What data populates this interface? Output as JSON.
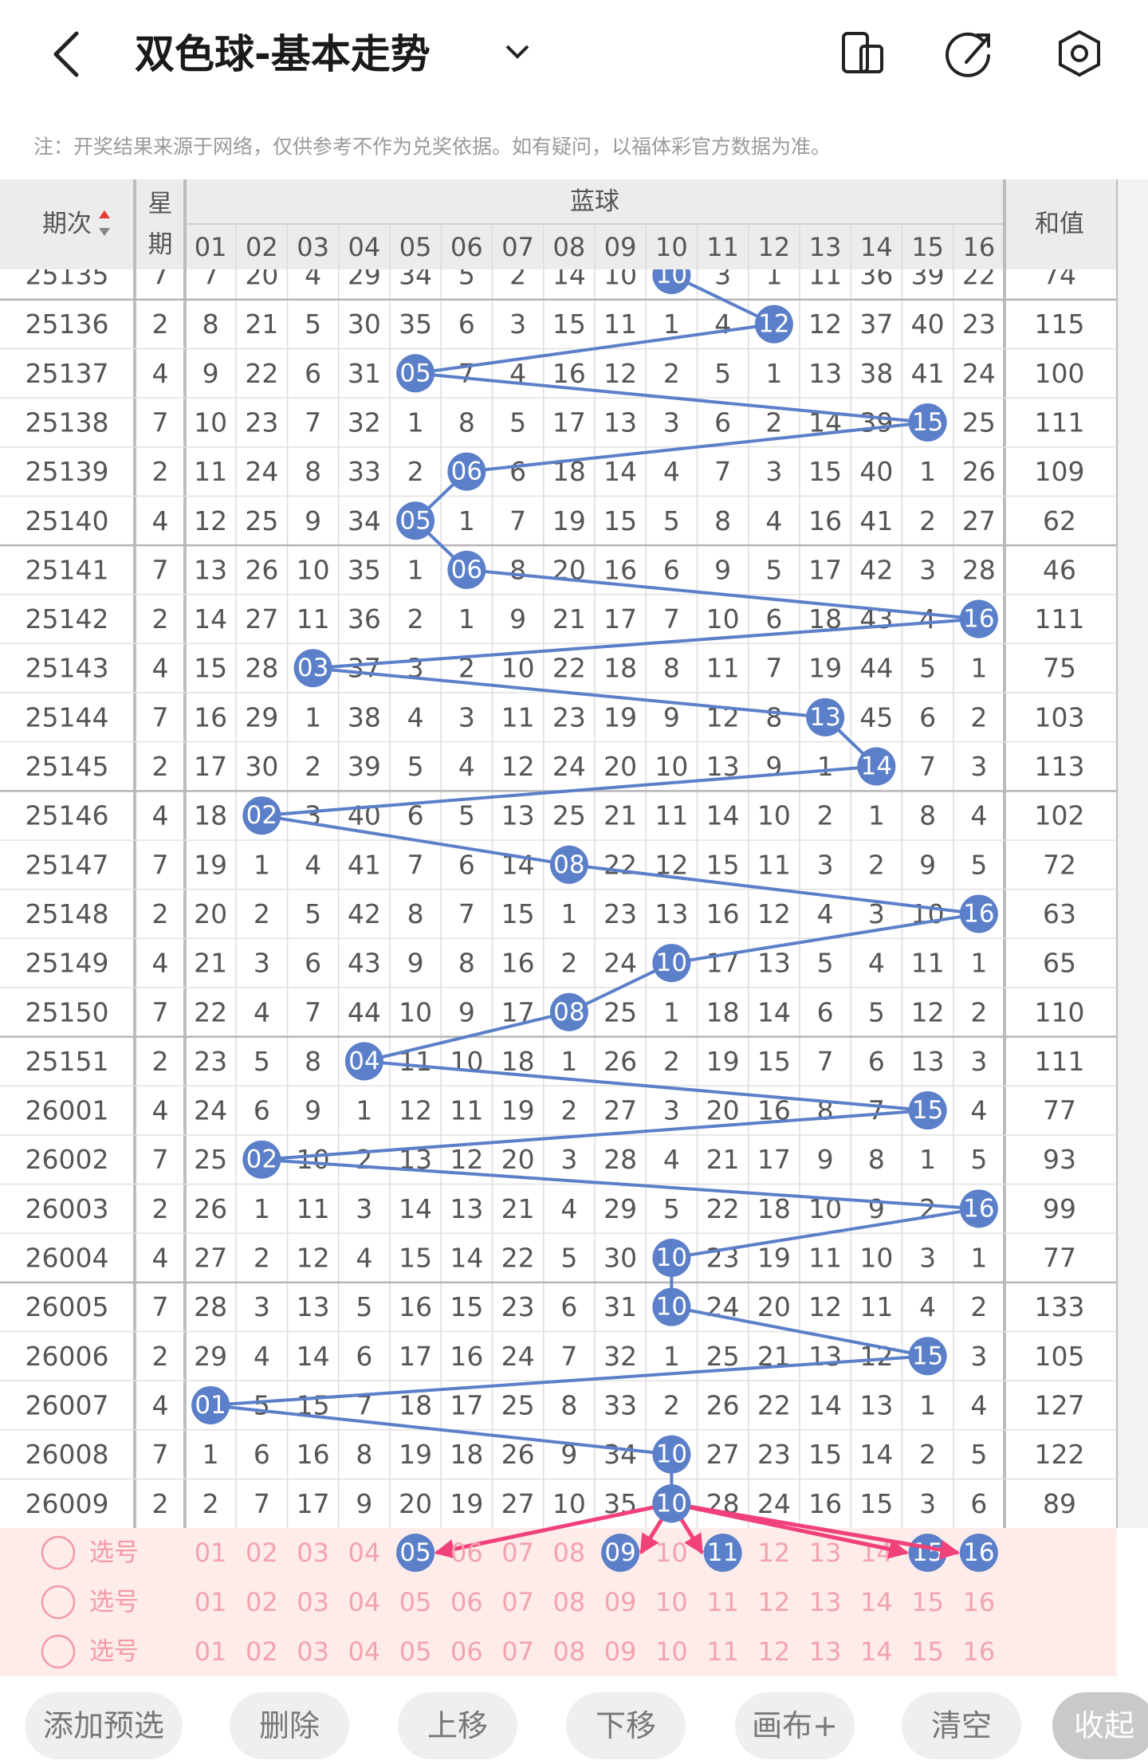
{
  "header": {
    "title": "双色球-基本走势"
  },
  "notice": "注：开奖结果来源于网络，仅供参考不作为兑奖依据。如有疑问，以福体彩官方数据为准。",
  "table": {
    "col_issue": "期次",
    "col_week": [
      "星",
      "期"
    ],
    "group": "蓝球",
    "blue_cols": [
      "01",
      "02",
      "03",
      "04",
      "05",
      "06",
      "07",
      "08",
      "09",
      "10",
      "11",
      "12",
      "13",
      "14",
      "15",
      "16"
    ],
    "col_sum": "和值",
    "rows": [
      {
        "issue": "25135",
        "week": 7,
        "cells": [
          7,
          20,
          4,
          29,
          34,
          5,
          2,
          14,
          10,
          {
            "ball": "10"
          },
          3,
          1,
          11,
          36,
          39,
          22
        ],
        "sum": 74
      },
      {
        "issue": "25136",
        "week": 2,
        "cells": [
          8,
          21,
          5,
          30,
          35,
          6,
          3,
          15,
          11,
          1,
          4,
          {
            "ball": "12"
          },
          12,
          37,
          40,
          23
        ],
        "sum": 115
      },
      {
        "issue": "25137",
        "week": 4,
        "cells": [
          9,
          22,
          6,
          31,
          {
            "ball": "05"
          },
          7,
          4,
          16,
          12,
          2,
          5,
          1,
          13,
          38,
          41,
          24
        ],
        "sum": 100
      },
      {
        "issue": "25138",
        "week": 7,
        "cells": [
          10,
          23,
          7,
          32,
          1,
          8,
          5,
          17,
          13,
          3,
          6,
          2,
          14,
          39,
          {
            "ball": "15"
          },
          25
        ],
        "sum": 111
      },
      {
        "issue": "25139",
        "week": 2,
        "cells": [
          11,
          24,
          8,
          33,
          2,
          {
            "ball": "06"
          },
          6,
          18,
          14,
          4,
          7,
          3,
          15,
          40,
          1,
          26
        ],
        "sum": 109
      },
      {
        "issue": "25140",
        "week": 4,
        "cells": [
          12,
          25,
          9,
          34,
          {
            "ball": "05"
          },
          1,
          7,
          19,
          15,
          5,
          8,
          4,
          16,
          41,
          2,
          27
        ],
        "sum": 62
      },
      {
        "issue": "25141",
        "week": 7,
        "cells": [
          13,
          26,
          10,
          35,
          1,
          {
            "ball": "06"
          },
          8,
          20,
          16,
          6,
          9,
          5,
          17,
          42,
          3,
          28
        ],
        "sum": 46
      },
      {
        "issue": "25142",
        "week": 2,
        "cells": [
          14,
          27,
          11,
          36,
          2,
          1,
          9,
          21,
          17,
          7,
          10,
          6,
          18,
          43,
          4,
          {
            "ball": "16"
          }
        ],
        "sum": 111
      },
      {
        "issue": "25143",
        "week": 4,
        "cells": [
          15,
          28,
          {
            "ball": "03"
          },
          37,
          3,
          2,
          10,
          22,
          18,
          8,
          11,
          7,
          19,
          44,
          5,
          1
        ],
        "sum": 75
      },
      {
        "issue": "25144",
        "week": 7,
        "cells": [
          16,
          29,
          1,
          38,
          4,
          3,
          11,
          23,
          19,
          9,
          12,
          8,
          {
            "ball": "13"
          },
          45,
          6,
          2
        ],
        "sum": 103
      },
      {
        "issue": "25145",
        "week": 2,
        "cells": [
          17,
          30,
          2,
          39,
          5,
          4,
          12,
          24,
          20,
          10,
          13,
          9,
          1,
          {
            "ball": "14"
          },
          7,
          3
        ],
        "sum": 113
      },
      {
        "issue": "25146",
        "week": 4,
        "cells": [
          18,
          {
            "ball": "02"
          },
          3,
          40,
          6,
          5,
          13,
          25,
          21,
          11,
          14,
          10,
          2,
          1,
          8,
          4
        ],
        "sum": 102
      },
      {
        "issue": "25147",
        "week": 7,
        "cells": [
          19,
          1,
          4,
          41,
          7,
          6,
          14,
          {
            "ball": "08"
          },
          22,
          12,
          15,
          11,
          3,
          2,
          9,
          5
        ],
        "sum": 72
      },
      {
        "issue": "25148",
        "week": 2,
        "cells": [
          20,
          2,
          5,
          42,
          8,
          7,
          15,
          1,
          23,
          13,
          16,
          12,
          4,
          3,
          10,
          {
            "ball": "16"
          }
        ],
        "sum": 63
      },
      {
        "issue": "25149",
        "week": 4,
        "cells": [
          21,
          3,
          6,
          43,
          9,
          8,
          16,
          2,
          24,
          {
            "ball": "10"
          },
          17,
          13,
          5,
          4,
          11,
          1
        ],
        "sum": 65
      },
      {
        "issue": "25150",
        "week": 7,
        "cells": [
          22,
          4,
          7,
          44,
          10,
          9,
          17,
          {
            "ball": "08"
          },
          25,
          1,
          18,
          14,
          6,
          5,
          12,
          2
        ],
        "sum": 110
      },
      {
        "issue": "25151",
        "week": 2,
        "cells": [
          23,
          5,
          8,
          {
            "ball": "04"
          },
          11,
          10,
          18,
          1,
          26,
          2,
          19,
          15,
          7,
          6,
          13,
          3
        ],
        "sum": 111
      },
      {
        "issue": "26001",
        "week": 4,
        "cells": [
          24,
          6,
          9,
          1,
          12,
          11,
          19,
          2,
          27,
          3,
          20,
          16,
          8,
          7,
          {
            "ball": "15"
          },
          4
        ],
        "sum": 77
      },
      {
        "issue": "26002",
        "week": 7,
        "cells": [
          25,
          {
            "ball": "02"
          },
          10,
          2,
          13,
          12,
          20,
          3,
          28,
          4,
          21,
          17,
          9,
          8,
          1,
          5
        ],
        "sum": 93
      },
      {
        "issue": "26003",
        "week": 2,
        "cells": [
          26,
          1,
          11,
          3,
          14,
          13,
          21,
          4,
          29,
          5,
          22,
          18,
          10,
          9,
          2,
          {
            "ball": "16"
          }
        ],
        "sum": 99
      },
      {
        "issue": "26004",
        "week": 4,
        "cells": [
          27,
          2,
          12,
          4,
          15,
          14,
          22,
          5,
          30,
          {
            "ball": "10"
          },
          23,
          19,
          11,
          10,
          3,
          1
        ],
        "sum": 77
      },
      {
        "issue": "26005",
        "week": 7,
        "cells": [
          28,
          3,
          13,
          5,
          16,
          15,
          23,
          6,
          31,
          {
            "ball": "10"
          },
          24,
          20,
          12,
          11,
          4,
          2
        ],
        "sum": 133
      },
      {
        "issue": "26006",
        "week": 2,
        "cells": [
          29,
          4,
          14,
          6,
          17,
          16,
          24,
          7,
          32,
          1,
          25,
          21,
          13,
          12,
          {
            "ball": "15"
          },
          3
        ],
        "sum": 105
      },
      {
        "issue": "26007",
        "week": 4,
        "cells": [
          {
            "ball": "01"
          },
          5,
          15,
          7,
          18,
          17,
          25,
          8,
          33,
          2,
          26,
          22,
          14,
          13,
          1,
          4
        ],
        "sum": 127
      },
      {
        "issue": "26008",
        "week": 7,
        "cells": [
          1,
          6,
          16,
          8,
          19,
          18,
          26,
          9,
          34,
          {
            "ball": "10"
          },
          27,
          23,
          15,
          14,
          2,
          5
        ],
        "sum": 122
      },
      {
        "issue": "26009",
        "week": 2,
        "cells": [
          2,
          7,
          17,
          9,
          20,
          19,
          27,
          10,
          35,
          {
            "ball": "10"
          },
          28,
          24,
          16,
          15,
          3,
          6
        ],
        "sum": 89
      }
    ]
  },
  "selection": {
    "rows": [
      {
        "label": "选号",
        "numbers": [
          "01",
          "02",
          "03",
          "04",
          {
            "ball": "05"
          },
          "06",
          "07",
          "08",
          {
            "ball": "09"
          },
          "10",
          {
            "ball": "11"
          },
          "12",
          "13",
          "14",
          {
            "ball": "15"
          },
          {
            "ball": "16"
          }
        ]
      },
      {
        "label": "选号",
        "numbers": [
          "01",
          "02",
          "03",
          "04",
          "05",
          "06",
          "07",
          "08",
          "09",
          "10",
          "11",
          "12",
          "13",
          "14",
          "15",
          "16"
        ]
      },
      {
        "label": "选号",
        "numbers": [
          "01",
          "02",
          "03",
          "04",
          "05",
          "06",
          "07",
          "08",
          "09",
          "10",
          "11",
          "12",
          "13",
          "14",
          "15",
          "16"
        ]
      }
    ]
  },
  "buttons": [
    "添加预选",
    "删除",
    "上移",
    "下移",
    "画布+",
    "清空",
    "收起"
  ]
}
